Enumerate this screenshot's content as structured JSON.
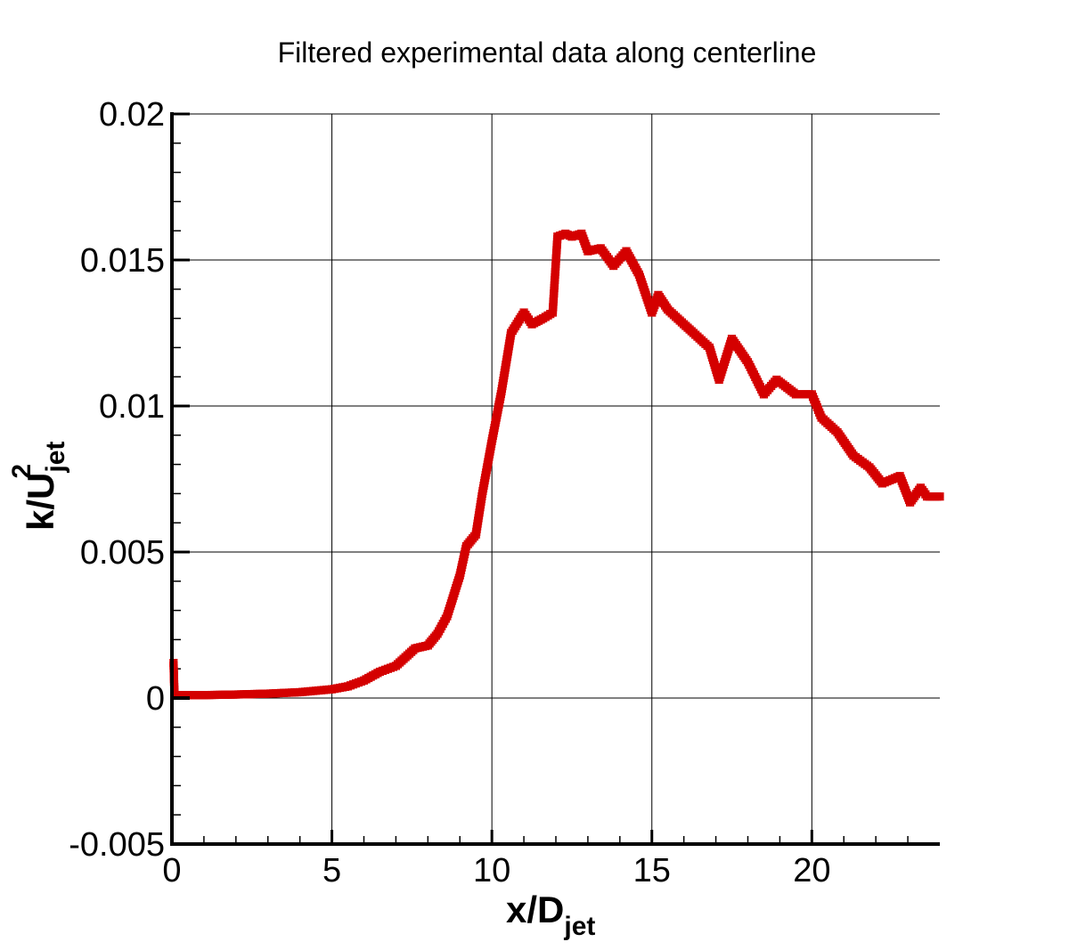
{
  "chart_data": {
    "type": "scatter",
    "title": "Filtered experimental data along centerline",
    "xlabel": {
      "base": "x/D",
      "sub": "jet"
    },
    "ylabel": {
      "base": "k/U",
      "sub": "jet",
      "sup": "2"
    },
    "xlim": [
      0,
      24
    ],
    "ylim": [
      -0.005,
      0.02
    ],
    "xticks": [
      "0",
      "5",
      "10",
      "15",
      "20"
    ],
    "xtick_values": [
      0,
      5,
      10,
      15,
      20
    ],
    "yticks": [
      "-0.005",
      "0",
      "0.005",
      "0.01",
      "0.015",
      "0.02"
    ],
    "ytick_values": [
      -0.005,
      0,
      0.005,
      0.01,
      0.015,
      0.02
    ],
    "grid": true,
    "marker": "open-square",
    "series_color": "#d40000",
    "series": [
      {
        "x": [
          0.05,
          0.08,
          0.2,
          1,
          2,
          3,
          4,
          5,
          5.5,
          6,
          6.5,
          7,
          7.3,
          7.6,
          8,
          8.3,
          8.6,
          9.0,
          9.2,
          9.5,
          9.7,
          10,
          10.3,
          10.6,
          11.0,
          11.25,
          11.6,
          11.9,
          12.05,
          12.3,
          12.5,
          12.8,
          13.0,
          13.4,
          13.8,
          14.2,
          14.6,
          15.0,
          15.2,
          15.5,
          16.0,
          16.3,
          16.8,
          17.1,
          17.5,
          18.0,
          18.5,
          18.9,
          19.5,
          20.0,
          20.3,
          20.8,
          21.3,
          21.8,
          22.2,
          22.75,
          23.07,
          23.4,
          23.6,
          24.0
        ],
        "y": [
          0.0012,
          0.0001,
          0.0001,
          0.0001,
          0.00012,
          0.00015,
          0.0002,
          0.0003,
          0.0004,
          0.0006,
          0.0009,
          0.0011,
          0.0014,
          0.0017,
          0.0018,
          0.0022,
          0.0028,
          0.0042,
          0.0052,
          0.0056,
          0.007,
          0.0088,
          0.0105,
          0.0125,
          0.0132,
          0.0128,
          0.013,
          0.0132,
          0.0158,
          0.0159,
          0.0158,
          0.0159,
          0.0153,
          0.0154,
          0.0148,
          0.0153,
          0.0145,
          0.0132,
          0.0138,
          0.0133,
          0.0128,
          0.0125,
          0.012,
          0.0109,
          0.0123,
          0.0115,
          0.0104,
          0.0109,
          0.0104,
          0.0104,
          0.0096,
          0.0091,
          0.0083,
          0.0079,
          0.00735,
          0.0076,
          0.0067,
          0.0072,
          0.0069,
          0.0069
        ]
      }
    ]
  }
}
